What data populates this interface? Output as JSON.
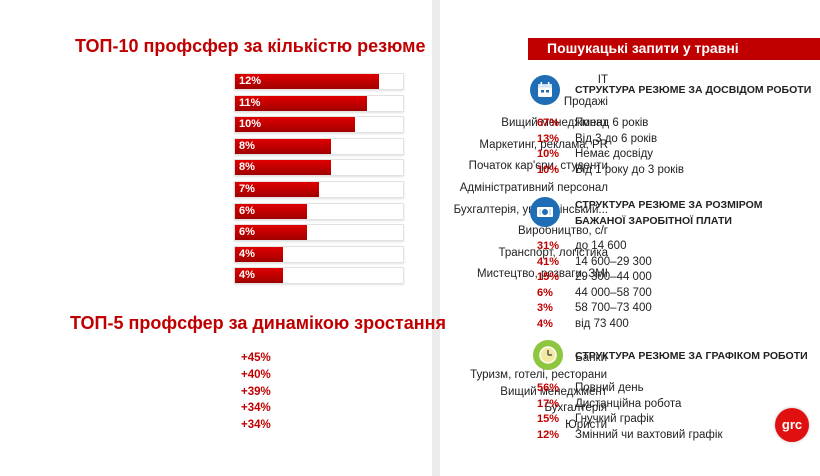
{
  "top10": {
    "title": "ТОП-10 профсфер за кількістю резюме",
    "chart_data": {
      "type": "bar",
      "title": "ТОП-10 профсфер за кількістю резюме",
      "categories": [
        "ІТ",
        "Продажі",
        "Вищий менеджмент",
        "Маркетинг, реклама, PR",
        "Початок кар'єри, студенти",
        "Адміністративний персонал",
        "Бухгалтерія, управлінський...",
        "Виробництво, с/г",
        "Транспорт, логістика",
        "Мистецтво, розваги, ЗМІ"
      ],
      "values": [
        12,
        11,
        10,
        8,
        8,
        7,
        6,
        6,
        4,
        4
      ],
      "value_labels": [
        "12%",
        "11%",
        "10%",
        "8%",
        "8%",
        "7%",
        "6%",
        "6%",
        "4%",
        "4%"
      ],
      "unit": "%",
      "xlim": [
        0,
        14
      ],
      "bar_color": "#c00000",
      "grid": false,
      "orientation": "horizontal"
    }
  },
  "top5": {
    "title": "ТОП-5 профсфер за динамікою зростання",
    "chart_data": {
      "type": "table",
      "categories": [
        "Банки",
        "Туризм, готелі, ресторани",
        "Вищий менеджмент",
        "Бухгалтерія",
        "Юристи"
      ],
      "values": [
        45,
        40,
        39,
        34,
        34
      ],
      "value_labels": [
        "+45%",
        "+40%",
        "+39%",
        "+34%",
        "+34%"
      ]
    }
  },
  "right": {
    "banner": "Пошукацькі запити у травні",
    "sections": [
      {
        "title": "СТРУКТУРА РЕЗЮМЕ ЗА ДОСВІДОМ РОБОТИ",
        "icon": "calendar-icon",
        "rows": [
          {
            "pct": "67%",
            "text": "Понад 6 років"
          },
          {
            "pct": "13%",
            "text": "Від 3 до 6 років"
          },
          {
            "pct": "10%",
            "text": "Немає досвіду"
          },
          {
            "pct": "10%",
            "text": "Від 1 року до 3 років"
          }
        ]
      },
      {
        "title": "СТРУКТУРА РЕЗЮМЕ ЗА РОЗМІРОМ БАЖАНОЇ ЗАРОБІТНОЇ ПЛАТИ",
        "icon": "money-icon",
        "rows": [
          {
            "pct": "31%",
            "text": "до 14 600"
          },
          {
            "pct": "41%",
            "text": "14 600–29 300"
          },
          {
            "pct": "15%",
            "text": "29 300–44 000"
          },
          {
            "pct": "6%",
            "text": "44 000–58 700"
          },
          {
            "pct": "3%",
            "text": "58 700–73 400"
          },
          {
            "pct": "4%",
            "text": "від 73 400"
          }
        ]
      },
      {
        "title": "СТРУКТУРА РЕЗЮМЕ ЗА ГРАФІКОМ РОБОТИ",
        "icon": "clock-icon",
        "rows": [
          {
            "pct": "56%",
            "text": "Повний день"
          },
          {
            "pct": "17%",
            "text": "Дистанційна робота"
          },
          {
            "pct": "15%",
            "text": "Гнучкий графік"
          },
          {
            "pct": "12%",
            "text": "Змінний чи вахтовий графік"
          }
        ]
      }
    ],
    "logo": "grc"
  },
  "colors": {
    "accent": "#c00000",
    "icon_blue": "#1f6db5",
    "icon_green": "#8ec63f"
  }
}
